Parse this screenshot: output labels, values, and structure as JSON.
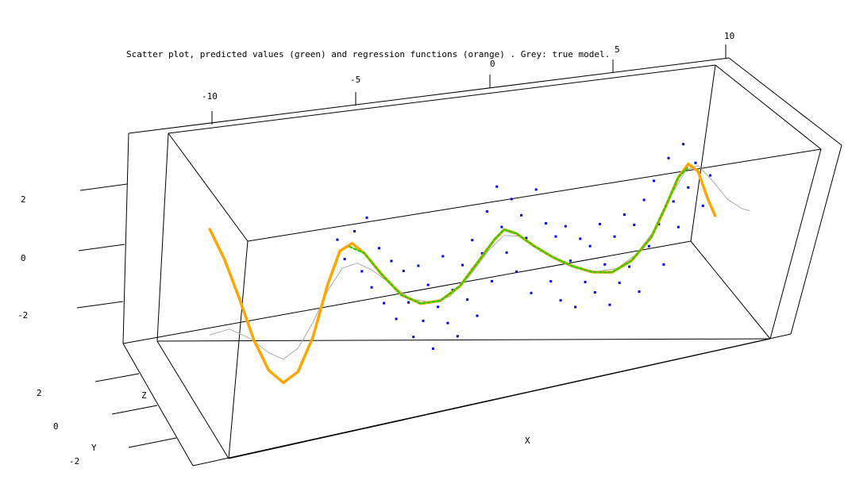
{
  "chart_data": {
    "type": "scatter",
    "title": "Scatter plot, predicted values (green) and regression functions (orange) . Grey: true model.",
    "xlabel": "X",
    "ylabel": "Y",
    "zlabel": "Z",
    "x_ticks": [
      "-10",
      "-5",
      "0",
      "5",
      "10"
    ],
    "y_ticks": [
      "2",
      "0",
      "-2"
    ],
    "z_ticks": [
      "2",
      "0",
      "-2"
    ],
    "xlim": [
      -12.5,
      10
    ],
    "zlim": [
      -4,
      4
    ],
    "colors": {
      "points": "#0000ee",
      "predicted": "#33cc00",
      "regression": "#ffa500",
      "true_model": "#aaaaaa"
    },
    "regression_curve": [
      {
        "x": -12,
        "z": 2.6
      },
      {
        "x": -11.4,
        "z": 1.5
      },
      {
        "x": -10.8,
        "z": 0.1
      },
      {
        "x": -10.2,
        "z": -1.4
      },
      {
        "x": -9.6,
        "z": -2.5
      },
      {
        "x": -9.0,
        "z": -3.0
      },
      {
        "x": -8.4,
        "z": -2.7
      },
      {
        "x": -7.8,
        "z": -1.6
      },
      {
        "x": -7.2,
        "z": 0.1
      },
      {
        "x": -6.7,
        "z": 1.2
      },
      {
        "x": -6.2,
        "z": 1.4
      },
      {
        "x": -5.7,
        "z": 1.0
      },
      {
        "x": -5.0,
        "z": 0.2
      },
      {
        "x": -4.2,
        "z": -0.6
      },
      {
        "x": -3.4,
        "z": -1.0
      },
      {
        "x": -2.6,
        "z": -1.0
      },
      {
        "x": -1.8,
        "z": -0.6
      },
      {
        "x": -1.0,
        "z": 0.2
      },
      {
        "x": -0.4,
        "z": 0.8
      },
      {
        "x": 0.0,
        "z": 1.1
      },
      {
        "x": 0.5,
        "z": 0.9
      },
      {
        "x": 1.2,
        "z": 0.4
      },
      {
        "x": 2.0,
        "z": -0.1
      },
      {
        "x": 2.8,
        "z": -0.5
      },
      {
        "x": 3.6,
        "z": -0.8
      },
      {
        "x": 4.4,
        "z": -0.9
      },
      {
        "x": 5.2,
        "z": -0.6
      },
      {
        "x": 6.0,
        "z": 0.1
      },
      {
        "x": 6.6,
        "z": 1.1
      },
      {
        "x": 7.1,
        "z": 2.0
      },
      {
        "x": 7.5,
        "z": 2.4
      },
      {
        "x": 7.9,
        "z": 2.1
      },
      {
        "x": 8.3,
        "z": 1.1
      },
      {
        "x": 8.6,
        "z": 0.5
      }
    ],
    "predicted_curve": [
      {
        "x": -6.3,
        "z": 1.3
      },
      {
        "x": -5.7,
        "z": 1.0
      },
      {
        "x": -5.0,
        "z": 0.2
      },
      {
        "x": -4.2,
        "z": -0.6
      },
      {
        "x": -3.4,
        "z": -1.0
      },
      {
        "x": -2.6,
        "z": -1.0
      },
      {
        "x": -1.8,
        "z": -0.6
      },
      {
        "x": -1.0,
        "z": 0.2
      },
      {
        "x": -0.4,
        "z": 0.8
      },
      {
        "x": 0.0,
        "z": 1.1
      },
      {
        "x": 0.5,
        "z": 0.9
      },
      {
        "x": 1.2,
        "z": 0.4
      },
      {
        "x": 2.0,
        "z": -0.1
      },
      {
        "x": 2.8,
        "z": -0.5
      },
      {
        "x": 3.6,
        "z": -0.8
      },
      {
        "x": 4.4,
        "z": -0.9
      },
      {
        "x": 5.2,
        "z": -0.6
      },
      {
        "x": 6.0,
        "z": 0.1
      },
      {
        "x": 6.6,
        "z": 1.1
      },
      {
        "x": 7.1,
        "z": 2.0
      },
      {
        "x": 7.5,
        "z": 2.3
      }
    ],
    "true_model_curve": [
      {
        "x": -12,
        "z": -1.0
      },
      {
        "x": -11.2,
        "z": -0.9
      },
      {
        "x": -10.4,
        "z": -1.3
      },
      {
        "x": -9.6,
        "z": -1.9
      },
      {
        "x": -9.0,
        "z": -2.2
      },
      {
        "x": -8.4,
        "z": -1.9
      },
      {
        "x": -7.8,
        "z": -1.1
      },
      {
        "x": -7.2,
        "z": -0.1
      },
      {
        "x": -6.6,
        "z": 0.6
      },
      {
        "x": -6.0,
        "z": 0.7
      },
      {
        "x": -5.4,
        "z": 0.4
      },
      {
        "x": -4.6,
        "z": -0.2
      },
      {
        "x": -3.8,
        "z": -0.8
      },
      {
        "x": -3.0,
        "z": -1.0
      },
      {
        "x": -2.2,
        "z": -0.9
      },
      {
        "x": -1.4,
        "z": -0.3
      },
      {
        "x": -0.6,
        "z": 0.5
      },
      {
        "x": 0.0,
        "z": 0.9
      },
      {
        "x": 0.6,
        "z": 0.8
      },
      {
        "x": 1.4,
        "z": 0.3
      },
      {
        "x": 2.2,
        "z": -0.2
      },
      {
        "x": 3.0,
        "z": -0.6
      },
      {
        "x": 3.8,
        "z": -0.8
      },
      {
        "x": 4.6,
        "z": -0.8
      },
      {
        "x": 5.4,
        "z": -0.4
      },
      {
        "x": 6.2,
        "z": 0.4
      },
      {
        "x": 6.8,
        "z": 1.4
      },
      {
        "x": 7.4,
        "z": 2.2
      },
      {
        "x": 7.9,
        "z": 2.3
      },
      {
        "x": 8.5,
        "z": 1.7
      },
      {
        "x": 9.1,
        "z": 1.0
      },
      {
        "x": 9.7,
        "z": 0.6
      },
      {
        "x": 10.0,
        "z": 0.5
      }
    ],
    "points": [
      {
        "x": -6.8,
        "z": 1.6
      },
      {
        "x": -6.5,
        "z": 0.9
      },
      {
        "x": -6.1,
        "z": 1.8
      },
      {
        "x": -5.8,
        "z": 0.4
      },
      {
        "x": -5.6,
        "z": 2.2
      },
      {
        "x": -5.4,
        "z": -0.2
      },
      {
        "x": -5.1,
        "z": 1.1
      },
      {
        "x": -4.9,
        "z": -0.8
      },
      {
        "x": -4.6,
        "z": 0.6
      },
      {
        "x": -4.4,
        "z": -1.4
      },
      {
        "x": -4.1,
        "z": 0.2
      },
      {
        "x": -3.9,
        "z": -0.9
      },
      {
        "x": -3.7,
        "z": -2.1
      },
      {
        "x": -3.5,
        "z": 0.3
      },
      {
        "x": -3.3,
        "z": -1.6
      },
      {
        "x": -3.1,
        "z": -0.4
      },
      {
        "x": -2.9,
        "z": -2.6
      },
      {
        "x": -2.7,
        "z": -1.2
      },
      {
        "x": -2.5,
        "z": 0.5
      },
      {
        "x": -2.3,
        "z": -1.8
      },
      {
        "x": -2.1,
        "z": -0.7
      },
      {
        "x": -1.9,
        "z": -2.3
      },
      {
        "x": -1.7,
        "z": 0.1
      },
      {
        "x": -1.5,
        "z": -1.1
      },
      {
        "x": -1.3,
        "z": 0.9
      },
      {
        "x": -1.1,
        "z": -1.7
      },
      {
        "x": -0.9,
        "z": 0.4
      },
      {
        "x": -0.7,
        "z": 1.8
      },
      {
        "x": -0.5,
        "z": -0.6
      },
      {
        "x": -0.3,
        "z": 2.6
      },
      {
        "x": -0.1,
        "z": 1.2
      },
      {
        "x": 0.1,
        "z": 0.3
      },
      {
        "x": 0.3,
        "z": 2.1
      },
      {
        "x": 0.5,
        "z": -0.4
      },
      {
        "x": 0.7,
        "z": 1.5
      },
      {
        "x": 0.9,
        "z": 0.7
      },
      {
        "x": 1.1,
        "z": -1.2
      },
      {
        "x": 1.3,
        "z": 2.3
      },
      {
        "x": 1.5,
        "z": 0.2
      },
      {
        "x": 1.7,
        "z": 1.1
      },
      {
        "x": 1.9,
        "z": -0.9
      },
      {
        "x": 2.1,
        "z": 0.6
      },
      {
        "x": 2.3,
        "z": -1.6
      },
      {
        "x": 2.5,
        "z": 0.9
      },
      {
        "x": 2.7,
        "z": -0.3
      },
      {
        "x": 2.9,
        "z": -1.9
      },
      {
        "x": 3.1,
        "z": 0.4
      },
      {
        "x": 3.3,
        "z": -1.1
      },
      {
        "x": 3.5,
        "z": 0.1
      },
      {
        "x": 3.7,
        "z": -1.5
      },
      {
        "x": 3.9,
        "z": 0.8
      },
      {
        "x": 4.1,
        "z": -0.6
      },
      {
        "x": 4.3,
        "z": -2.0
      },
      {
        "x": 4.5,
        "z": 0.3
      },
      {
        "x": 4.7,
        "z": -1.3
      },
      {
        "x": 4.9,
        "z": 1.0
      },
      {
        "x": 5.1,
        "z": -0.8
      },
      {
        "x": 5.3,
        "z": 0.6
      },
      {
        "x": 5.5,
        "z": -1.7
      },
      {
        "x": 5.7,
        "z": 1.4
      },
      {
        "x": 5.9,
        "z": -0.2
      },
      {
        "x": 6.1,
        "z": 2.0
      },
      {
        "x": 6.3,
        "z": 0.5
      },
      {
        "x": 6.5,
        "z": -0.9
      },
      {
        "x": 6.7,
        "z": 2.7
      },
      {
        "x": 6.9,
        "z": 1.2
      },
      {
        "x": 7.1,
        "z": 0.3
      },
      {
        "x": 7.3,
        "z": 3.1
      },
      {
        "x": 7.5,
        "z": 1.6
      },
      {
        "x": 7.8,
        "z": 2.4
      },
      {
        "x": 8.1,
        "z": 0.9
      },
      {
        "x": 8.4,
        "z": 1.9
      }
    ]
  }
}
